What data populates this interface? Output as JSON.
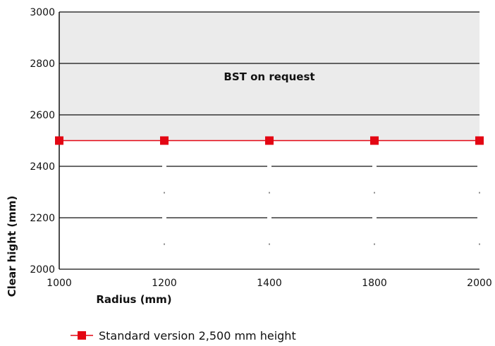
{
  "chart_data": {
    "type": "line",
    "xlabel": "Radius (mm)",
    "ylabel": "Clear hight (mm)",
    "x_ticks": [
      "1000",
      "1200",
      "1400",
      "1800",
      "2000"
    ],
    "y_ticks": [
      "2000",
      "2200",
      "2400",
      "2600",
      "2800",
      "3000"
    ],
    "ylim": [
      2000,
      3000
    ],
    "grid": true,
    "shaded_region": {
      "label": "BST on request",
      "y_from": 2500,
      "y_to": 3000
    },
    "series": [
      {
        "name": "Standard version 2,500 mm height",
        "x": [
          "1000",
          "1200",
          "1400",
          "1800",
          "2000"
        ],
        "values": [
          2500,
          2500,
          2500,
          2500,
          2500
        ],
        "color": "#e30613",
        "marker": "square"
      }
    ],
    "legend_position": "bottom",
    "colors": {
      "shaded": "#ebebeb",
      "series": "#e30613",
      "grid": "#111111"
    }
  }
}
